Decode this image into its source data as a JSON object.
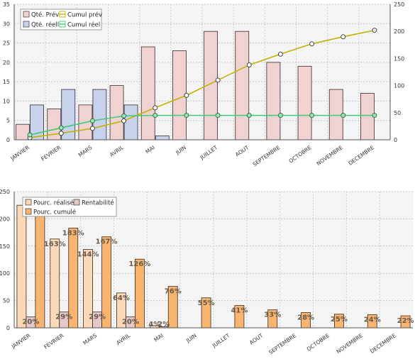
{
  "chart_data": [
    {
      "type": "bar",
      "categories": [
        "JANVIER",
        "FEVRIER",
        "MARS",
        "AVRIL",
        "MAI",
        "JUIN",
        "JUILLET",
        "AOUT",
        "SEPTEMBRE",
        "OCTOBRE",
        "NOVEMBRE",
        "DECEMBRE"
      ],
      "series": [
        {
          "name": "Qté. Prév",
          "type": "bar",
          "axis": "left",
          "color": "#f0d2d2",
          "values": [
            4,
            8,
            9,
            14,
            24,
            23,
            28,
            28,
            20,
            19,
            13,
            12
          ]
        },
        {
          "name": "Qté. réelle",
          "type": "bar",
          "axis": "left",
          "color": "#c8d2ea",
          "values": [
            9,
            13,
            13,
            9,
            1,
            0,
            0,
            0,
            0,
            0,
            0,
            0
          ]
        },
        {
          "name": "Cumul prév",
          "type": "line",
          "axis": "right",
          "color": "#c0b400",
          "values": [
            4,
            12,
            21,
            35,
            59,
            82,
            110,
            138,
            158,
            177,
            190,
            202
          ]
        },
        {
          "name": "Cumul réel",
          "type": "line",
          "axis": "right",
          "color": "#3ccc78",
          "values": [
            9,
            22,
            35,
            44,
            45,
            45,
            45,
            45,
            45,
            45,
            45,
            45
          ]
        }
      ],
      "ylim": [
        0,
        35
      ],
      "yticks": [
        0,
        5,
        10,
        15,
        20,
        25,
        30,
        35
      ],
      "y2lim": [
        0,
        250
      ],
      "y2ticks": [
        0,
        50,
        100,
        150,
        200,
        250
      ],
      "grid": true,
      "legend": "top-left"
    },
    {
      "type": "bar",
      "categories": [
        "JANVIER",
        "FEVRIER",
        "MARS",
        "AVRIL",
        "MAI",
        "JUIN",
        "JUILLET",
        "AOUT",
        "SEPTEMBRE",
        "OCTOBRE",
        "NOVEMBRE",
        "DECEMBRE"
      ],
      "series": [
        {
          "name": "Pourc. réalisé",
          "color": "#fbd9b8",
          "values": [
            225,
            163,
            144,
            64,
            4,
            null,
            null,
            null,
            null,
            null,
            null,
            null
          ],
          "labels": [
            "",
            "163%",
            "144%",
            "64%",
            "4%",
            "",
            "",
            "",
            "",
            "",
            "",
            ""
          ]
        },
        {
          "name": "Rentabilité",
          "color": "#e3c9c9",
          "values": [
            20,
            29,
            29,
            20,
            2,
            null,
            null,
            null,
            null,
            null,
            null,
            null
          ],
          "labels": [
            "20%",
            "29%",
            "29%",
            "20%",
            "2%",
            "",
            "",
            "",
            "",
            "",
            "",
            ""
          ]
        },
        {
          "name": "Pourc. cumulé",
          "color": "#f7b56f",
          "values": [
            225,
            183,
            167,
            126,
            76,
            55,
            41,
            33,
            28,
            25,
            24,
            22
          ],
          "labels": [
            "",
            "183%",
            "167%",
            "126%",
            "76%",
            "55%",
            "41%",
            "33%",
            "28%",
            "25%",
            "24%",
            "22%"
          ]
        }
      ],
      "ylim": [
        0,
        250
      ],
      "yticks": [
        0,
        50,
        100,
        150,
        200,
        250
      ],
      "grid": true,
      "legend": "top-left"
    }
  ]
}
